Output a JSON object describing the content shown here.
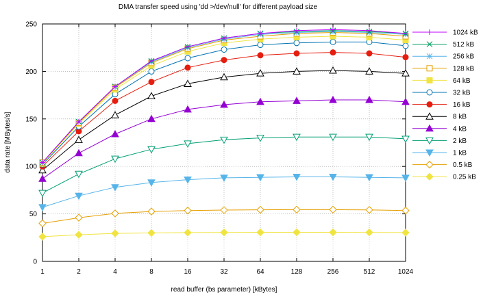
{
  "chart_data": {
    "type": "line",
    "title": "DMA transfer speed using 'dd >/dev/null' for different payload size",
    "xlabel": "read buffer (bs parameter) [kBytes]",
    "ylabel": "data rate [MBytes/s]",
    "x_scale": "log2",
    "categories": [
      "1",
      "2",
      "4",
      "8",
      "16",
      "32",
      "64",
      "128",
      "256",
      "512",
      "1024"
    ],
    "ylim": [
      0,
      250
    ],
    "yticks": [
      0,
      50,
      100,
      150,
      200,
      250
    ],
    "grid": true,
    "legend_position": "right",
    "series": [
      {
        "name": "1024 kB",
        "color": "#c000ff",
        "marker": "plus",
        "values": [
          104,
          147,
          184,
          211,
          226,
          235,
          240,
          243,
          244,
          243,
          240
        ]
      },
      {
        "name": "512 kB",
        "color": "#00a060",
        "marker": "cross",
        "values": [
          104,
          147,
          184,
          211,
          226,
          235,
          240,
          242,
          243,
          242,
          240
        ]
      },
      {
        "name": "256 kB",
        "color": "#56b4e9",
        "marker": "star",
        "values": [
          104,
          147,
          184,
          210,
          225,
          234,
          239,
          241,
          242,
          241,
          239
        ]
      },
      {
        "name": "128 kB",
        "color": "#e69f00",
        "marker": "open-square",
        "values": [
          104,
          146,
          183,
          209,
          224,
          233,
          237,
          240,
          241,
          240,
          237
        ]
      },
      {
        "name": "64 kB",
        "color": "#f0e442",
        "marker": "filled-square",
        "values": [
          103,
          145,
          181,
          206,
          221,
          230,
          234,
          236,
          237,
          236,
          233
        ]
      },
      {
        "name": "32 kB",
        "color": "#0072b2",
        "marker": "open-circle",
        "values": [
          102,
          142,
          176,
          200,
          214,
          223,
          228,
          230,
          231,
          231,
          227
        ]
      },
      {
        "name": "16 kB",
        "color": "#e51e10",
        "marker": "filled-circle",
        "values": [
          100,
          137,
          169,
          189,
          204,
          212,
          217,
          219,
          220,
          219,
          215
        ]
      },
      {
        "name": "8 kB",
        "color": "#000000",
        "marker": "open-triangle",
        "values": [
          96,
          128,
          154,
          174,
          187,
          194,
          198,
          200,
          201,
          200,
          198
        ]
      },
      {
        "name": "4 kB",
        "color": "#9400d3",
        "marker": "filled-triangle",
        "values": [
          87,
          114,
          134,
          150,
          160,
          165,
          168,
          169,
          170,
          170,
          168
        ]
      },
      {
        "name": "2 kB",
        "color": "#009e73",
        "marker": "open-inverted-triangle",
        "values": [
          72,
          92,
          108,
          118,
          124,
          128,
          130,
          131,
          131,
          131,
          129
        ]
      },
      {
        "name": "1 kB",
        "color": "#56b4e9",
        "marker": "filled-inverted-triangle",
        "values": [
          57,
          69,
          78,
          83,
          86,
          88,
          88.5,
          89,
          89,
          88.5,
          88
        ]
      },
      {
        "name": "0.5 kB",
        "color": "#e69f00",
        "marker": "open-diamond",
        "values": [
          40,
          46,
          50.5,
          52.5,
          53.5,
          54,
          54.3,
          54.5,
          54.5,
          54.2,
          53.5
        ]
      },
      {
        "name": "0.25 kB",
        "color": "#f0e442",
        "marker": "filled-diamond",
        "values": [
          26,
          28,
          29.5,
          30,
          30.3,
          30.5,
          30.6,
          30.6,
          30.6,
          30.5,
          30.3
        ]
      }
    ]
  }
}
